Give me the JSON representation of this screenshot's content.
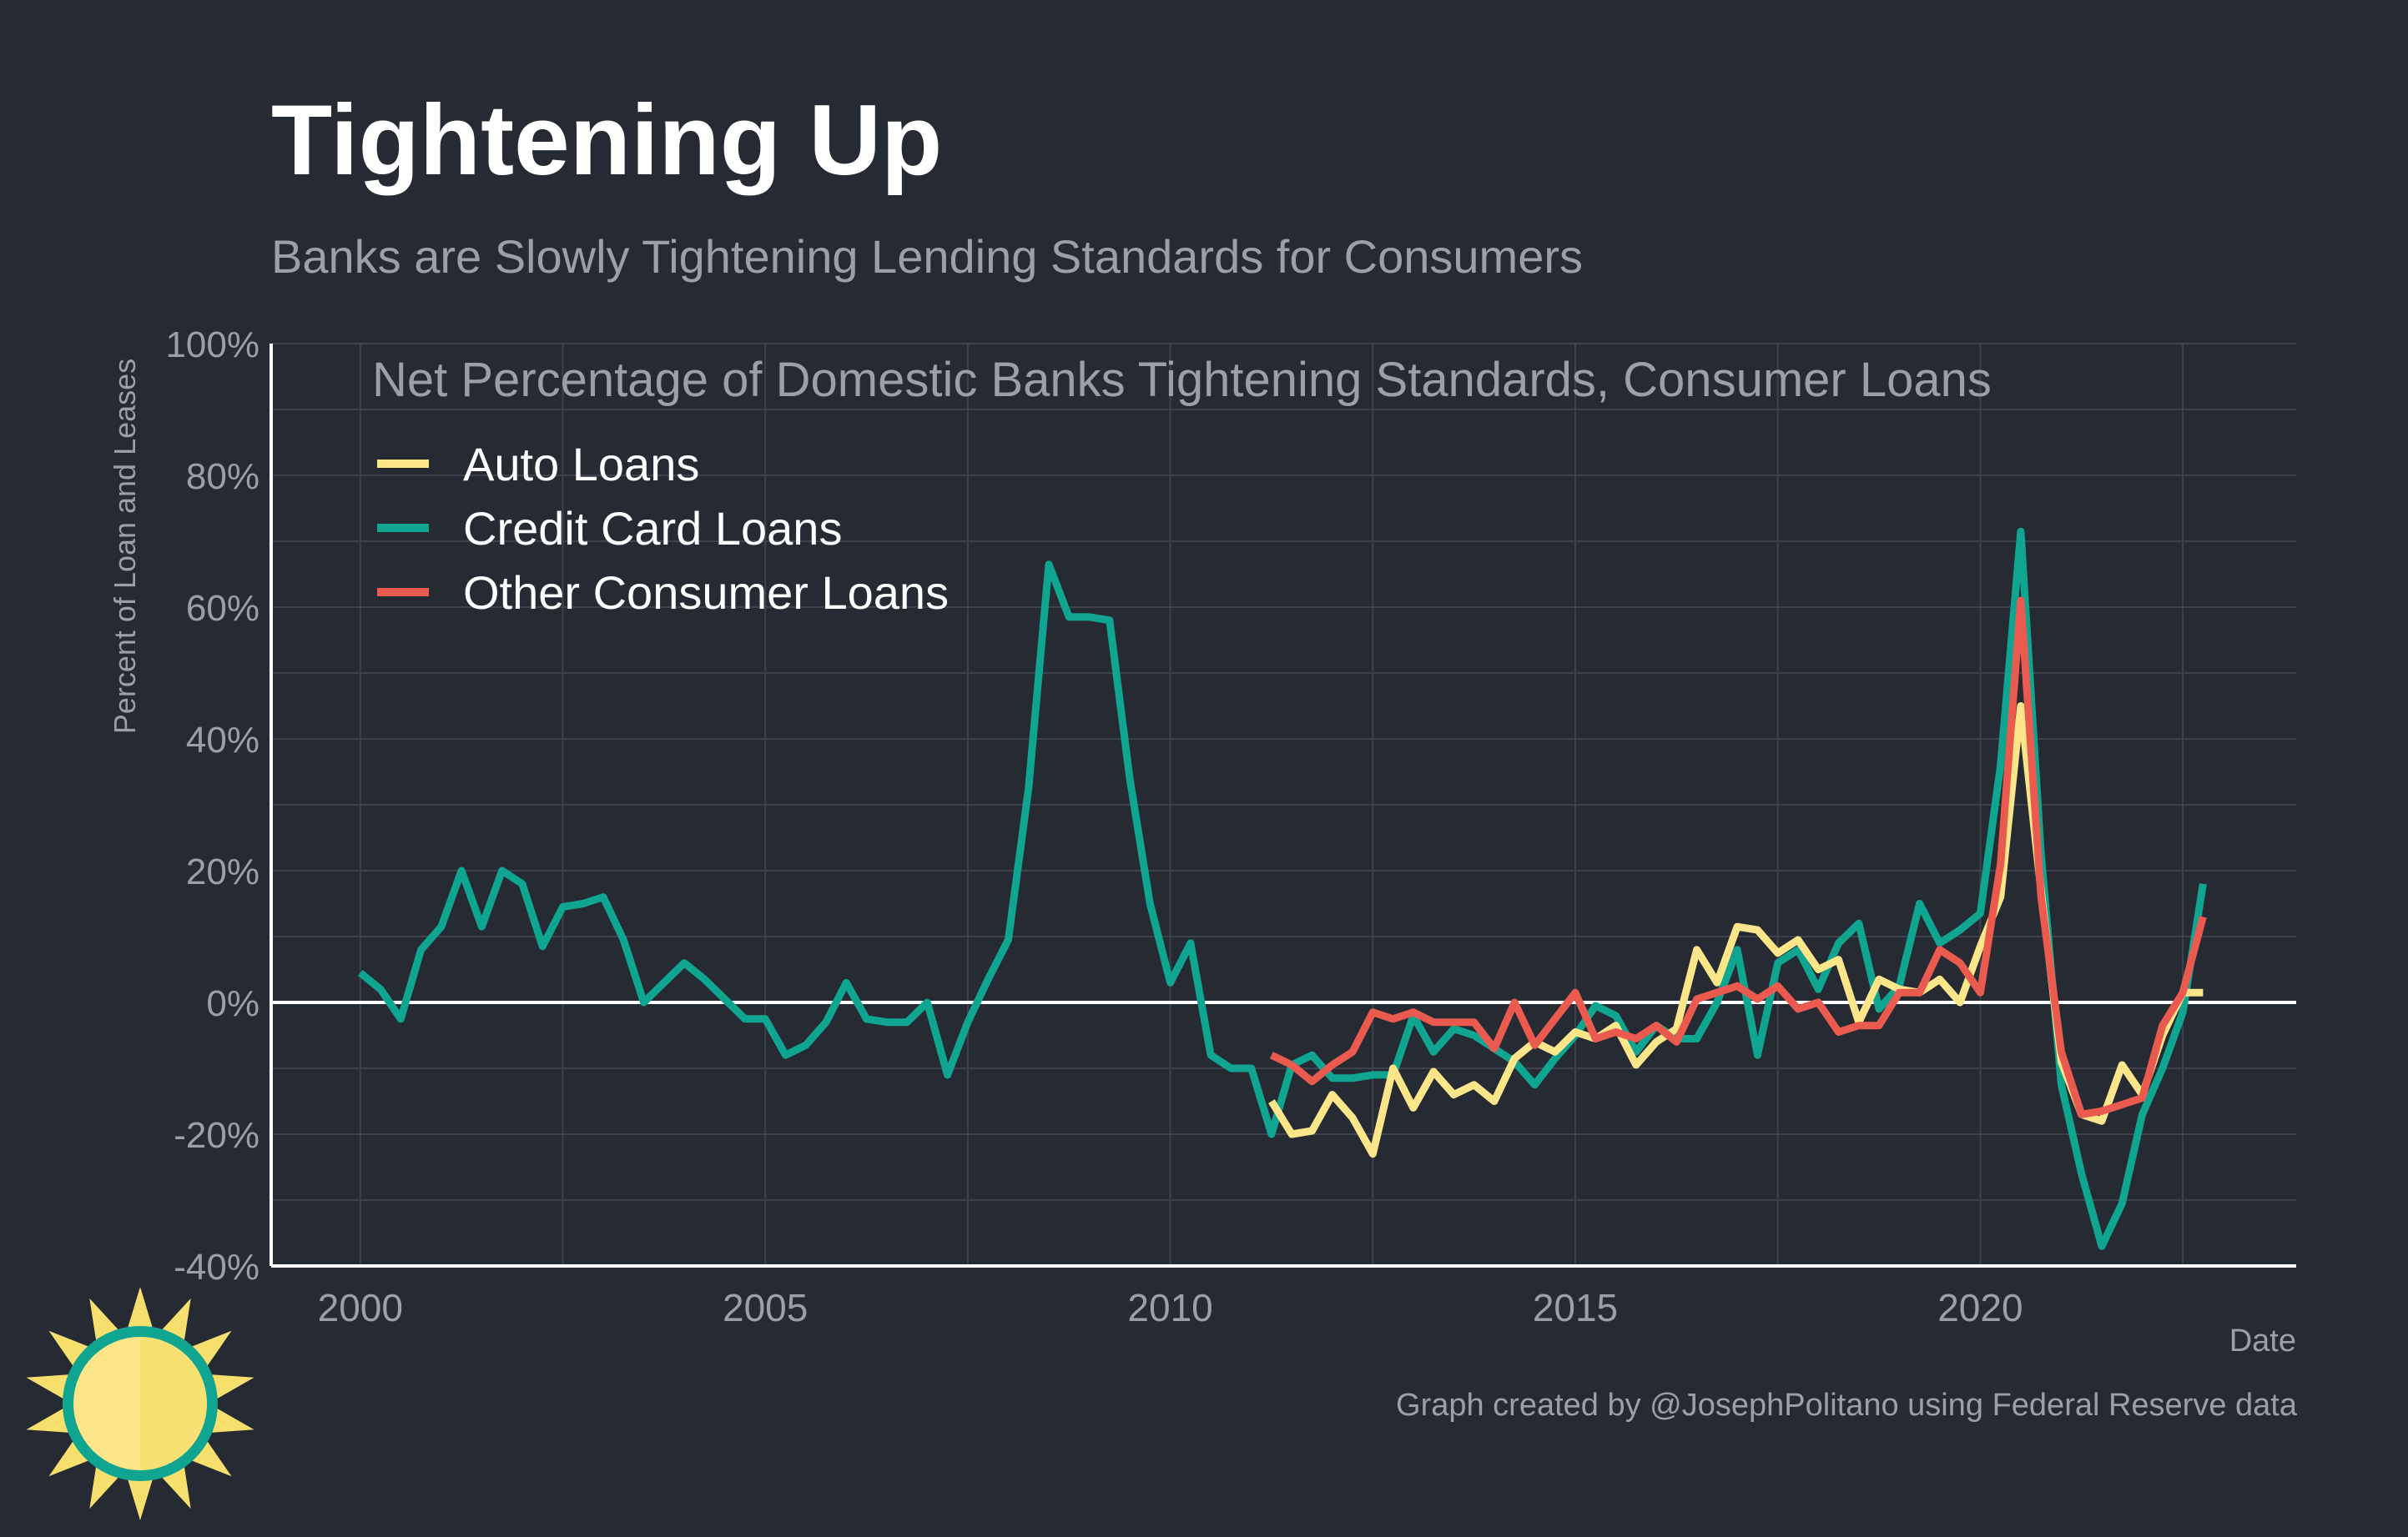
{
  "header": {
    "title": "Tightening Up",
    "subtitle": "Banks are Slowly Tightening Lending Standards for Consumers"
  },
  "caption": "Graph created by @JosephPolitano using Federal Reserve data",
  "colors": {
    "background": "#252a33",
    "grid": "#3d424c",
    "axis": "#ffffff",
    "auto": "#fde68a",
    "credit": "#0fa591",
    "other": "#ea5a4f",
    "muted_text": "#9a9fa8"
  },
  "logo": {
    "icon": "sun-icon"
  },
  "chart_data": {
    "type": "line",
    "plot_title": "Net Percentage of Domestic Banks Tightening Standards, Consumer Loans",
    "xlabel": "Date",
    "ylabel": "Percent of Loan and Leases",
    "xlim": [
      1998.9,
      2023.9
    ],
    "ylim": [
      -40,
      100
    ],
    "x_ticks": [
      2000,
      2005,
      2010,
      2015,
      2020
    ],
    "x_tick_labels": [
      "2000",
      "2005",
      "2010",
      "2015",
      "2020"
    ],
    "y_ticks": [
      -40,
      -20,
      0,
      20,
      40,
      60,
      80,
      100
    ],
    "y_tick_labels": [
      "-40%",
      "-20%",
      "0%",
      "20%",
      "40%",
      "60%",
      "80%",
      "100%"
    ],
    "legend_position": "top-left",
    "grid": true,
    "series": [
      {
        "name": "Auto Loans",
        "color": "#fde68a",
        "x": [
          2011.25,
          2011.5,
          2011.75,
          2012.0,
          2012.25,
          2012.5,
          2012.75,
          2013.0,
          2013.25,
          2013.5,
          2013.75,
          2014.0,
          2014.25,
          2014.5,
          2014.75,
          2015.0,
          2015.25,
          2015.5,
          2015.75,
          2016.0,
          2016.25,
          2016.5,
          2016.75,
          2017.0,
          2017.25,
          2017.5,
          2017.75,
          2018.0,
          2018.25,
          2018.5,
          2018.75,
          2019.0,
          2019.25,
          2019.5,
          2019.75,
          2020.0,
          2020.25,
          2020.5,
          2020.75,
          2021.0,
          2021.25,
          2021.5,
          2021.75,
          2022.0,
          2022.25,
          2022.5,
          2022.75
        ],
        "values": [
          -15,
          -20,
          -19.5,
          -14,
          -17.5,
          -23,
          -10,
          -16,
          -10.5,
          -14,
          -12.5,
          -15,
          -8.5,
          -6,
          -7.5,
          -4.5,
          -5.5,
          -3.5,
          -9.5,
          -6,
          -4,
          8,
          3,
          11.5,
          11,
          7.5,
          9.5,
          5,
          6.5,
          -3,
          3.5,
          2,
          1.5,
          3.5,
          0,
          8.5,
          16,
          45,
          17,
          -9,
          -17,
          -18,
          -9.5,
          -14,
          -5,
          1.5,
          1.5
        ]
      },
      {
        "name": "Credit Card Loans",
        "color": "#0fa591",
        "x": [
          2000.0,
          2000.25,
          2000.5,
          2000.75,
          2001.0,
          2001.25,
          2001.5,
          2001.75,
          2002.0,
          2002.25,
          2002.5,
          2002.75,
          2003.0,
          2003.25,
          2003.5,
          2003.75,
          2004.0,
          2004.25,
          2004.5,
          2004.75,
          2005.0,
          2005.25,
          2005.5,
          2005.75,
          2006.0,
          2006.25,
          2006.5,
          2006.75,
          2007.0,
          2007.25,
          2007.5,
          2007.75,
          2008.0,
          2008.25,
          2008.5,
          2008.75,
          2009.0,
          2009.25,
          2009.5,
          2009.75,
          2010.0,
          2010.25,
          2010.5,
          2010.75,
          2011.0,
          2011.25,
          2011.5,
          2011.75,
          2012.0,
          2012.25,
          2012.5,
          2012.75,
          2013.0,
          2013.25,
          2013.5,
          2013.75,
          2014.0,
          2014.25,
          2014.5,
          2014.75,
          2015.0,
          2015.25,
          2015.5,
          2015.75,
          2016.0,
          2016.25,
          2016.5,
          2016.75,
          2017.0,
          2017.25,
          2017.5,
          2017.75,
          2018.0,
          2018.25,
          2018.5,
          2018.75,
          2019.0,
          2019.25,
          2019.5,
          2019.75,
          2020.0,
          2020.25,
          2020.5,
          2020.75,
          2021.0,
          2021.25,
          2021.5,
          2021.75,
          2022.0,
          2022.25,
          2022.5,
          2022.75
        ],
        "values": [
          4.5,
          2,
          -2.5,
          8,
          11.5,
          20,
          11.5,
          20,
          18,
          8.5,
          14.5,
          15,
          16,
          9.5,
          0,
          3,
          6,
          3.5,
          0.5,
          -2.5,
          -2.5,
          -8,
          -6.5,
          -3,
          3,
          -2.5,
          -3,
          -3,
          0,
          -11,
          -3,
          3.5,
          9.5,
          32.5,
          66.5,
          58.5,
          58.5,
          58,
          34,
          15,
          3,
          9,
          -8,
          -10,
          -10,
          -20,
          -9.5,
          -8,
          -11.5,
          -11.5,
          -11,
          -11,
          -2,
          -7.5,
          -4,
          -5,
          -7,
          -9,
          -12.5,
          -8.5,
          -5,
          -0.5,
          -2,
          -7.5,
          -3.5,
          -5.5,
          -5.5,
          0,
          8,
          -8,
          6,
          8,
          2,
          9,
          12,
          -1,
          2.5,
          15,
          9,
          11,
          13.5,
          36,
          71.5,
          22.5,
          -12.5,
          -26,
          -37,
          -30.5,
          -17,
          -10,
          -1.5,
          18
        ]
      },
      {
        "name": "Other Consumer Loans",
        "color": "#ea5a4f",
        "x": [
          2011.25,
          2011.5,
          2011.75,
          2012.0,
          2012.25,
          2012.5,
          2012.75,
          2013.0,
          2013.25,
          2013.5,
          2013.75,
          2014.0,
          2014.25,
          2014.5,
          2014.75,
          2015.0,
          2015.25,
          2015.5,
          2015.75,
          2016.0,
          2016.25,
          2016.5,
          2016.75,
          2017.0,
          2017.25,
          2017.5,
          2017.75,
          2018.0,
          2018.25,
          2018.5,
          2018.75,
          2019.0,
          2019.25,
          2019.5,
          2019.75,
          2020.0,
          2020.25,
          2020.5,
          2020.75,
          2021.0,
          2021.25,
          2021.5,
          2021.75,
          2022.0,
          2022.25,
          2022.5,
          2022.75
        ],
        "values": [
          -8,
          -9.5,
          -12,
          -9.5,
          -7.5,
          -1.5,
          -2.5,
          -1.5,
          -3,
          -3,
          -3,
          -7,
          0,
          -6.5,
          -2.5,
          1.5,
          -5.5,
          -4.5,
          -5.5,
          -3.5,
          -6,
          0.5,
          1.5,
          2.5,
          0.5,
          2.5,
          -1,
          0,
          -4.5,
          -3.5,
          -3.5,
          1.5,
          1.5,
          8,
          6,
          1.5,
          21,
          61,
          16,
          -7.5,
          -17,
          -16.5,
          -15.5,
          -14.5,
          -3.5,
          1.5,
          13
        ]
      }
    ]
  }
}
